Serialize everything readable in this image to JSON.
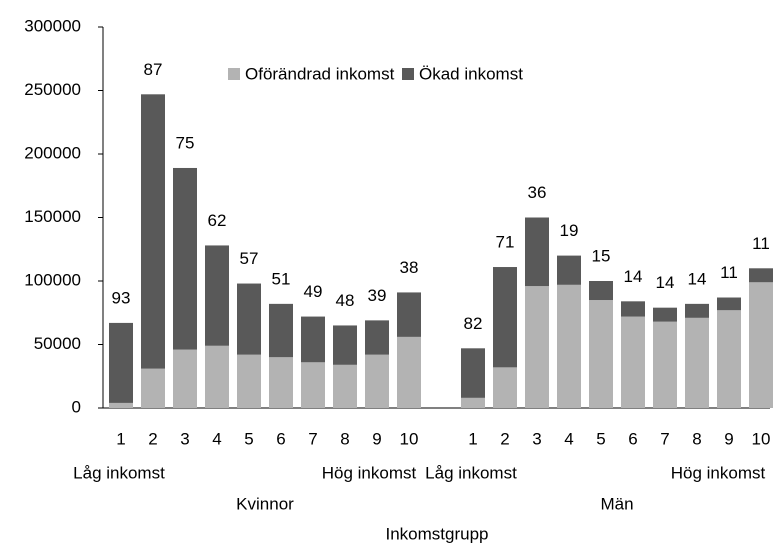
{
  "chart_data": {
    "type": "stacked_bar",
    "x_label": "Inkomstgrupp",
    "categories": [
      "1",
      "2",
      "3",
      "4",
      "5",
      "6",
      "7",
      "8",
      "9",
      "10",
      null,
      "1",
      "2",
      "3",
      "4",
      "5",
      "6",
      "7",
      "8",
      "9",
      "10"
    ],
    "groups": [
      {
        "name": "Kvinnor",
        "low": "Låg inkomst",
        "high": "Hög inkomst"
      },
      {
        "name": "Män",
        "low": "Låg inkomst",
        "high": "Hög inkomst"
      }
    ],
    "series": [
      {
        "name": "Oförändrad inkomst",
        "color": "#b3b3b3",
        "values": [
          4000,
          31000,
          46000,
          49000,
          42000,
          40000,
          36000,
          34000,
          42000,
          56000,
          null,
          8000,
          32000,
          96000,
          97000,
          85000,
          72000,
          68000,
          71000,
          77000,
          99000
        ]
      },
      {
        "name": "Ökad inkomst",
        "color": "#595959",
        "values": [
          63000,
          216000,
          143000,
          79000,
          56000,
          42000,
          36000,
          31000,
          27000,
          35000,
          null,
          39000,
          79000,
          54000,
          23000,
          15000,
          12000,
          11000,
          11000,
          10000,
          11000
        ]
      }
    ],
    "share_labels": [
      93,
      87,
      75,
      62,
      57,
      51,
      49,
      48,
      39,
      38,
      null,
      82,
      71,
      36,
      19,
      15,
      14,
      14,
      14,
      11,
      11
    ],
    "ylim": [
      0,
      300000
    ],
    "yticks": [
      0,
      50000,
      100000,
      150000,
      200000,
      250000,
      300000
    ],
    "legend": "top"
  }
}
